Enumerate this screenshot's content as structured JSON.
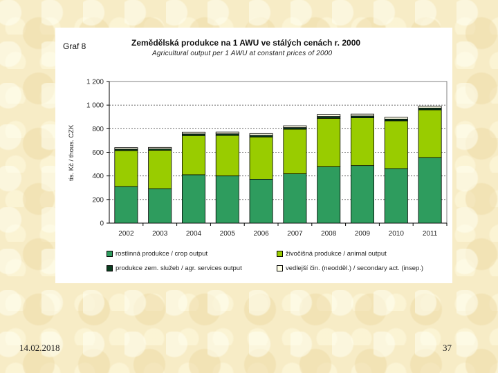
{
  "slide": {
    "date": "14.02.2018",
    "page_number": "37"
  },
  "chart_data": {
    "type": "bar",
    "stacked": true,
    "figure_label": "Graf 8",
    "title": "Zemědělská produkce na 1 AWU ve stálých cenách r. 2000",
    "subtitle": "Agricultural output per 1 AWU at constant prices of 2000",
    "ylabel": "tis. Kč / thous. CZK",
    "xlabel": "",
    "ylim": [
      0,
      1200
    ],
    "yticks": [
      0,
      200,
      400,
      600,
      800,
      1000,
      1200
    ],
    "ytick_labels": [
      "0",
      "200",
      "400",
      "600",
      "800",
      "1 000",
      "1 200"
    ],
    "grid": true,
    "categories": [
      "2002",
      "2003",
      "2004",
      "2005",
      "2006",
      "2007",
      "2008",
      "2009",
      "2010",
      "2011"
    ],
    "series": [
      {
        "name": "rostlinná produkce / crop output",
        "color": "#2e9c5e",
        "values": [
          310,
          292,
          410,
          400,
          372,
          418,
          478,
          488,
          462,
          555
        ]
      },
      {
        "name": "živočišná produkce / animal output",
        "color": "#99cc00",
        "values": [
          305,
          325,
          332,
          343,
          358,
          378,
          410,
          405,
          405,
          405
        ]
      },
      {
        "name": "produkce zem. služeb / agr. services output",
        "color": "#0a3d1e",
        "values": [
          12,
          12,
          14,
          14,
          14,
          14,
          16,
          15,
          15,
          15
        ]
      },
      {
        "name": "vedlejší čin. (neodděl.) / secondary act. (insep.)",
        "color": "#ffffe6",
        "values": [
          13,
          13,
          15,
          15,
          15,
          15,
          17,
          16,
          15,
          15
        ]
      }
    ],
    "legend_position": "bottom"
  }
}
